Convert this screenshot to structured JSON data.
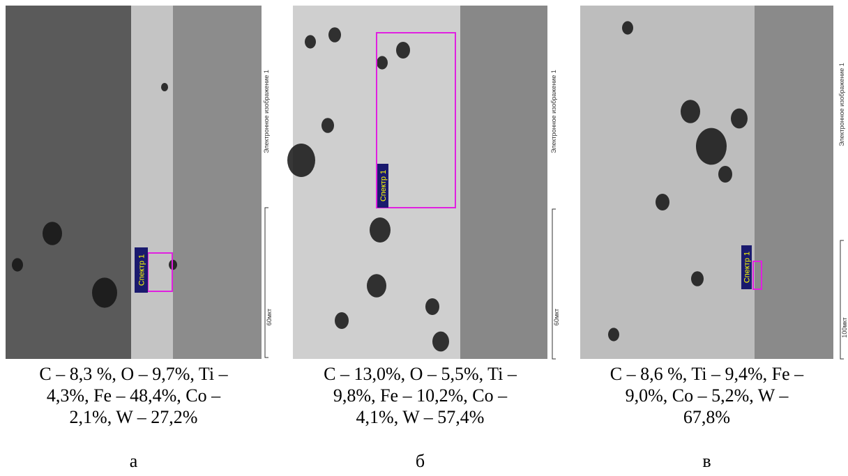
{
  "panels": [
    {
      "spectrum_label": "Спектр 1",
      "image_label": "Электронное изображение 1",
      "scale_label": "60мкт",
      "caption_lines": [
        "C – 8,3 %, O – 9,7%, Ti –",
        "4,3%, Fe – 48,4%, Co –",
        "2,1%,  W – 27,2%"
      ],
      "letter": "а"
    },
    {
      "spectrum_label": "Спектр 1",
      "image_label": "Электронное изображение 1",
      "scale_label": "60мкт",
      "caption_lines": [
        "C – 13,0%, O – 5,5%, Ti –",
        "9,8%, Fe – 10,2%, Co –",
        "4,1%,  W – 57,4%"
      ],
      "letter": "б"
    },
    {
      "spectrum_label": "Спектр 1",
      "image_label": "Электронное изображение 1",
      "scale_label": "100мкт",
      "caption_lines": [
        "C – 8,6 %, Ti – 9,4%, Fe –",
        "9,0%, Co – 5,2%,  W –",
        "67,8%"
      ],
      "letter": "в"
    }
  ]
}
